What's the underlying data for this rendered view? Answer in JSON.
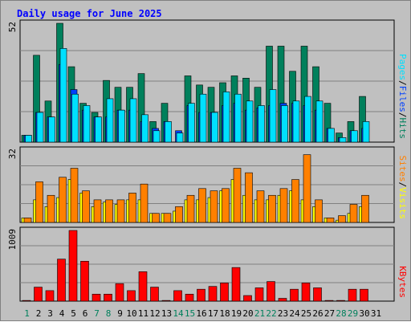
{
  "title": "Daily usage for June 2025",
  "colors": {
    "background": "#c0c0c0",
    "hits": "#00805c",
    "files": "#0040ff",
    "pages": "#00e0ff",
    "visits": "#ffff00",
    "sites": "#ff8000",
    "kbytes": "#ff0000",
    "title": "#0000ff",
    "weekend": "#00805c",
    "weekday": "#000000"
  },
  "chart_data": [
    {
      "type": "bar",
      "name": "hits-files-pages",
      "categories": [
        "1",
        "2",
        "3",
        "4",
        "5",
        "6",
        "7",
        "8",
        "9",
        "10",
        "11",
        "12",
        "13",
        "14",
        "15",
        "16",
        "17",
        "18",
        "19",
        "20",
        "21",
        "22",
        "23",
        "24",
        "25",
        "26",
        "27",
        "28",
        "29",
        "30",
        "31"
      ],
      "ymax": 52,
      "ymax_label": "52",
      "ylim": [
        0,
        52
      ],
      "grid": true,
      "right_labels": [
        "Pages",
        "Files",
        "Hits"
      ],
      "series": [
        {
          "name": "Hits",
          "values": [
            3,
            38,
            18,
            52,
            33,
            17,
            13,
            27,
            24,
            24,
            30,
            9,
            17,
            0,
            29,
            25,
            24,
            26,
            29,
            28,
            24,
            42,
            42,
            31,
            42,
            33,
            17,
            4,
            9,
            20,
            0
          ]
        },
        {
          "name": "Files",
          "values": [
            3,
            13,
            11,
            34,
            23,
            14,
            11,
            11,
            14,
            14,
            9,
            6,
            9,
            5,
            16,
            13,
            13,
            16,
            17,
            14,
            15,
            16,
            17,
            17,
            16,
            14,
            6,
            2,
            5,
            6,
            0
          ]
        },
        {
          "name": "Pages",
          "values": [
            3,
            13,
            11,
            41,
            21,
            16,
            11,
            19,
            14,
            19,
            12,
            5,
            9,
            4,
            17,
            21,
            13,
            22,
            21,
            18,
            16,
            23,
            16,
            18,
            20,
            18,
            6,
            2,
            5,
            9,
            0
          ]
        }
      ]
    },
    {
      "type": "bar",
      "name": "visits-sites",
      "categories": [
        "1",
        "2",
        "3",
        "4",
        "5",
        "6",
        "7",
        "8",
        "9",
        "10",
        "11",
        "12",
        "13",
        "14",
        "15",
        "16",
        "17",
        "18",
        "19",
        "20",
        "21",
        "22",
        "23",
        "24",
        "25",
        "26",
        "27",
        "28",
        "29",
        "30",
        "31"
      ],
      "ymax": 32,
      "ymax_label": "32",
      "ylim": [
        0,
        32
      ],
      "grid": true,
      "right_labels": [
        "Sites",
        "Visits"
      ],
      "series": [
        {
          "name": "Visits",
          "values": [
            2,
            10,
            7,
            11,
            19,
            13,
            7,
            9,
            8,
            10,
            10,
            4,
            4,
            5,
            10,
            10,
            11,
            14,
            19,
            12,
            10,
            10,
            12,
            14,
            10,
            7,
            2,
            1,
            4,
            7,
            0
          ]
        },
        {
          "name": "Sites",
          "values": [
            2,
            18,
            12,
            20,
            24,
            14,
            10,
            10,
            10,
            13,
            17,
            4,
            4,
            7,
            12,
            15,
            14,
            15,
            24,
            22,
            14,
            12,
            15,
            19,
            30,
            10,
            2,
            3,
            8,
            12,
            0
          ]
        }
      ]
    },
    {
      "type": "bar",
      "name": "kbytes",
      "categories": [
        "1",
        "2",
        "3",
        "4",
        "5",
        "6",
        "7",
        "8",
        "9",
        "10",
        "11",
        "12",
        "13",
        "14",
        "15",
        "16",
        "17",
        "18",
        "19",
        "20",
        "21",
        "22",
        "23",
        "24",
        "25",
        "26",
        "27",
        "28",
        "29",
        "30",
        "31"
      ],
      "ymax": 1009,
      "ymax_label": "1009",
      "ylim": [
        0,
        1009
      ],
      "grid": true,
      "right_labels": [
        "KBytes"
      ],
      "series": [
        {
          "name": "KBytes",
          "values": [
            10,
            200,
            150,
            600,
            1009,
            570,
            100,
            100,
            250,
            150,
            420,
            200,
            10,
            150,
            100,
            170,
            210,
            260,
            480,
            80,
            190,
            280,
            40,
            170,
            260,
            190,
            10,
            10,
            170,
            170,
            0
          ]
        }
      ]
    }
  ],
  "x_axis": {
    "days": [
      "1",
      "2",
      "3",
      "4",
      "5",
      "6",
      "7",
      "8",
      "9",
      "10",
      "11",
      "12",
      "13",
      "14",
      "15",
      "16",
      "17",
      "18",
      "19",
      "20",
      "21",
      "22",
      "23",
      "24",
      "25",
      "26",
      "27",
      "28",
      "29",
      "30",
      "31"
    ],
    "weekend_days": [
      "1",
      "7",
      "8",
      "14",
      "15",
      "21",
      "22",
      "28",
      "29"
    ]
  }
}
